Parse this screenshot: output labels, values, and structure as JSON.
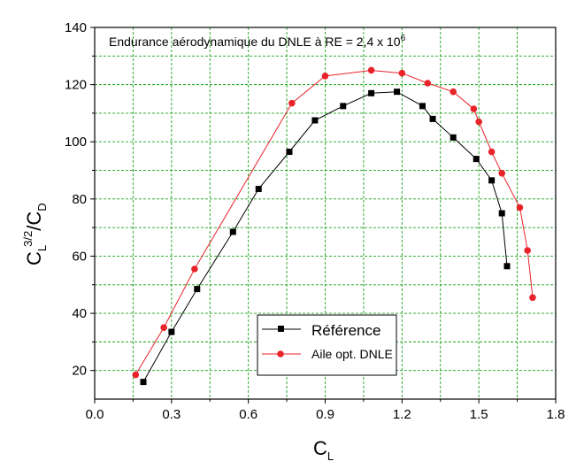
{
  "chart_data": {
    "type": "line",
    "annotation": {
      "text": "Endurance aérodynamique du DNLE à RE = 2,4 x 10",
      "superscript": "6"
    },
    "xlabel": {
      "main": "C",
      "sub": "L"
    },
    "ylabel": {
      "main1": "C",
      "sub1": "L",
      "sup1": "3/2",
      "main2": "/C",
      "sub2": "D"
    },
    "xlim": [
      0.0,
      1.8
    ],
    "ylim": [
      10,
      140
    ],
    "xticks": [
      0.0,
      0.3,
      0.6,
      0.9,
      1.2,
      1.5,
      1.8
    ],
    "xtick_labels": [
      "0.0",
      "0.3",
      "0.6",
      "0.9",
      "1.2",
      "1.5",
      "1.8"
    ],
    "yticks": [
      20,
      40,
      60,
      80,
      100,
      120,
      140
    ],
    "ytick_labels": [
      "20",
      "40",
      "60",
      "80",
      "100",
      "120",
      "140"
    ],
    "grid": true,
    "legend_position": "bottom-center",
    "series": [
      {
        "name": "Référence",
        "color": "#000000",
        "marker": "square",
        "x": [
          0.19,
          0.3,
          0.4,
          0.54,
          0.64,
          0.76,
          0.86,
          0.97,
          1.08,
          1.18,
          1.28,
          1.32,
          1.4,
          1.49,
          1.55,
          1.59,
          1.61
        ],
        "y": [
          16,
          33.5,
          48.5,
          68.5,
          83.5,
          96.5,
          107.5,
          112.5,
          117,
          117.5,
          112.5,
          108,
          101.5,
          94,
          86.5,
          75,
          56.5
        ]
      },
      {
        "name": "Aile opt. DNLE",
        "color": "#e8232a",
        "marker": "circle",
        "x": [
          0.16,
          0.27,
          0.39,
          0.77,
          0.9,
          1.08,
          1.2,
          1.3,
          1.4,
          1.48,
          1.5,
          1.55,
          1.59,
          1.66,
          1.69,
          1.71
        ],
        "y": [
          18.5,
          35,
          55.5,
          113.5,
          123,
          125,
          124,
          120.5,
          117.5,
          111.5,
          107,
          96.5,
          89,
          77,
          62,
          45.5
        ]
      }
    ]
  }
}
